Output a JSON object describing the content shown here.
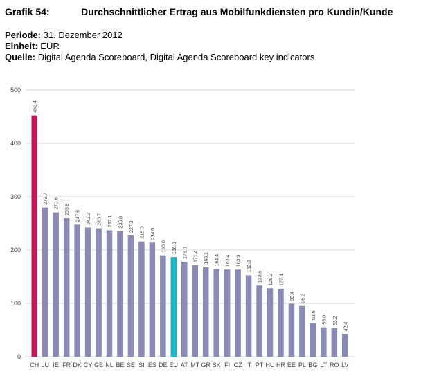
{
  "header": {
    "label": "Grafik 54:",
    "title": "Durchschnittlicher Ertrag aus Mobilfunkdiensten pro Kundin/Kunde"
  },
  "meta": {
    "period_label": "Periode:",
    "period_value": "31. Dezember 2012",
    "unit_label": "Einheit:",
    "unit_value": "EUR",
    "source_label": "Quelle:",
    "source_value": "Digital Agenda Scoreboard, Digital Agenda Scoreboard key indicators"
  },
  "chart_data": {
    "type": "bar",
    "categories": [
      "CH",
      "LU",
      "IE",
      "FR",
      "DK",
      "CY",
      "GB",
      "NL",
      "BE",
      "SE",
      "SI",
      "ES",
      "DE",
      "EU",
      "AT",
      "MT",
      "GR",
      "SK",
      "FI",
      "CZ",
      "IT",
      "PT",
      "HU",
      "HR",
      "EE",
      "PL",
      "BG",
      "LT",
      "RO",
      "LV"
    ],
    "values": [
      452.4,
      279.7,
      270.6,
      259.8,
      247.6,
      242.2,
      240.7,
      237.1,
      235.8,
      227.3,
      216.0,
      214.0,
      190.0,
      186.8,
      178.0,
      171.4,
      168.1,
      164.4,
      163.4,
      163.3,
      152.8,
      133.5,
      128.2,
      127.4,
      99.4,
      95.2,
      63.6,
      55.0,
      53.2,
      42.4
    ],
    "value_labels": [
      "452.4",
      "279.7",
      "270.6",
      "259.8",
      "247.6",
      "242.2",
      "240.7",
      "237.1",
      "235.8",
      "227.3",
      "216.0",
      "214.0",
      "190.0",
      "186.8",
      "178.0",
      "171.4",
      "168.1",
      "164.4",
      "163.4",
      "163.3",
      "152.8",
      "133.5",
      "128.2",
      "127.4",
      "99.4",
      "95.2",
      "63.6",
      "55.0",
      "53.2",
      "42.4"
    ],
    "ylim": [
      0,
      500
    ],
    "yticks": [
      0,
      100,
      200,
      300,
      400,
      500
    ],
    "grid": true,
    "colors": {
      "default": "#8b8ab4",
      "highlight_CH": "#c2185b",
      "highlight_EU": "#1fb3c3",
      "grid": "#d8d8d8",
      "axis_text": "#444444"
    }
  }
}
